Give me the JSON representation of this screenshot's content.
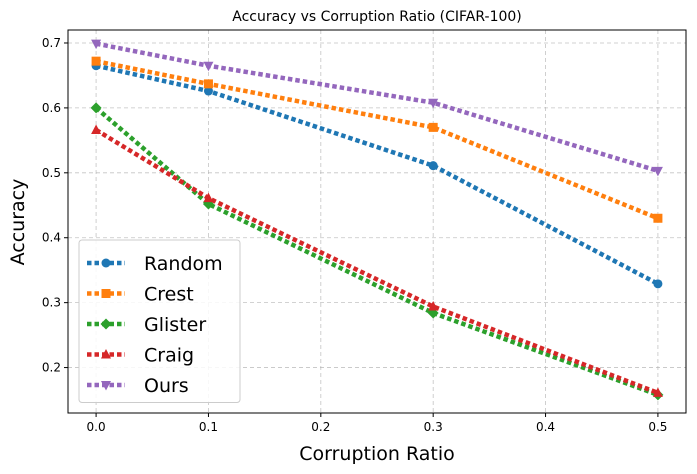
{
  "chart_data": {
    "type": "line",
    "title": "Accuracy vs Corruption Ratio (CIFAR-100)",
    "xlabel": "Corruption Ratio",
    "ylabel": "Accuracy",
    "x": [
      0.0,
      0.1,
      0.3,
      0.5
    ],
    "xlim": [
      -0.025,
      0.525
    ],
    "ylim": [
      0.13,
      0.72
    ],
    "xticks": [
      "0.0",
      "0.1",
      "0.2",
      "0.3",
      "0.4",
      "0.5"
    ],
    "yticks": [
      "0.2",
      "0.3",
      "0.4",
      "0.5",
      "0.6",
      "0.7"
    ],
    "grid": true,
    "legend_position": "lower-left",
    "series": [
      {
        "name": "Random",
        "values": [
          0.665,
          0.626,
          0.511,
          0.329
        ],
        "color": "#1f77b4",
        "marker": "circle"
      },
      {
        "name": "Crest",
        "values": [
          0.672,
          0.637,
          0.57,
          0.43
        ],
        "color": "#ff7f0e",
        "marker": "square"
      },
      {
        "name": "Glister",
        "values": [
          0.6,
          0.452,
          0.284,
          0.158
        ],
        "color": "#2ca02c",
        "marker": "diamond"
      },
      {
        "name": "Craig",
        "values": [
          0.566,
          0.461,
          0.294,
          0.161
        ],
        "color": "#d62728",
        "marker": "triangle-up"
      },
      {
        "name": "Ours",
        "values": [
          0.699,
          0.665,
          0.608,
          0.503
        ],
        "color": "#9467bd",
        "marker": "triangle-down"
      }
    ]
  }
}
